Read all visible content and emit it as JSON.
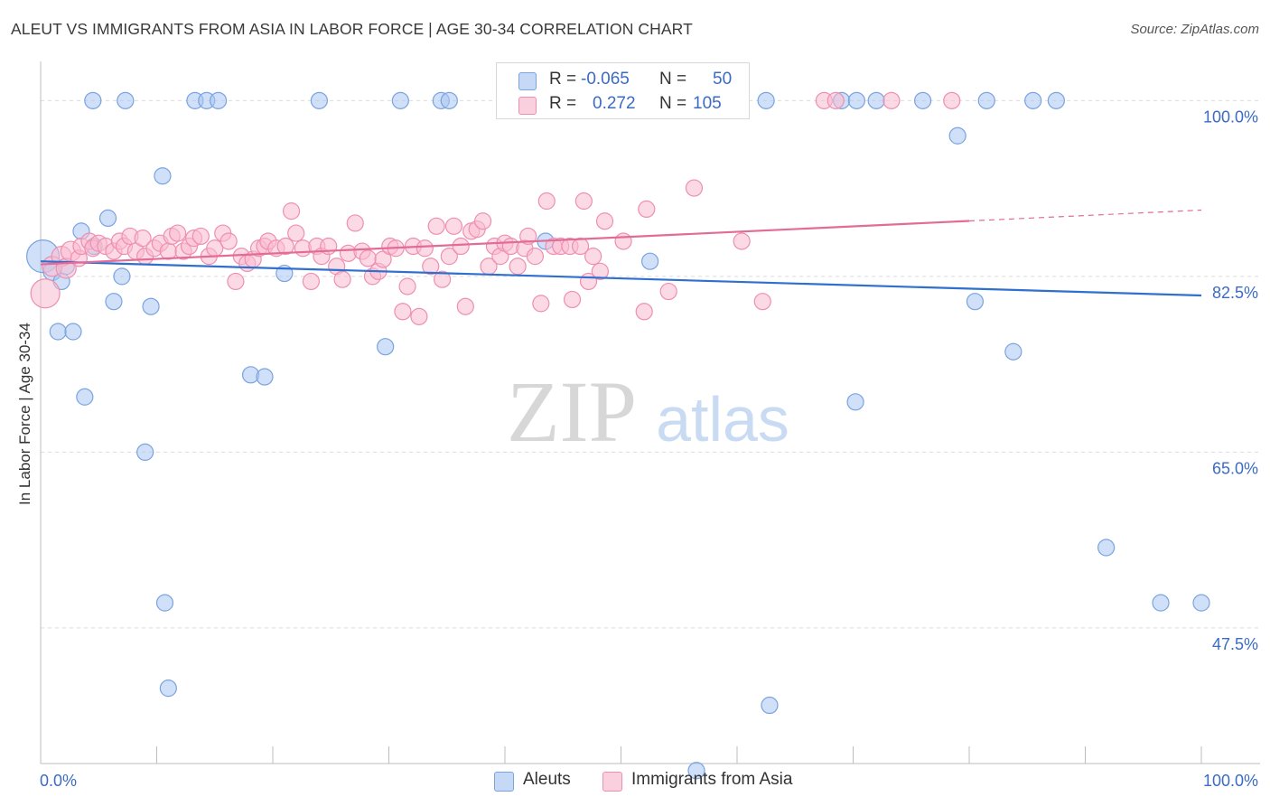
{
  "title": "ALEUT VS IMMIGRANTS FROM ASIA IN LABOR FORCE | AGE 30-34 CORRELATION CHART",
  "source": "Source: ZipAtlas.com",
  "watermark": {
    "zip": "ZIP",
    "atlas": "atlas"
  },
  "legend": {
    "r_label": "R =",
    "n_label": "N =",
    "rows": [
      {
        "r": "-0.065",
        "n": "50",
        "color": "#a9c6f2",
        "border": "#7aa3e0"
      },
      {
        "r": "0.272",
        "n": "105",
        "color": "#f9bcd0",
        "border": "#ee8fb0"
      }
    ]
  },
  "chart_data": {
    "type": "scatter",
    "ylabel": "In Labor Force | Age 30-34",
    "xlim": [
      0,
      100
    ],
    "ylim": [
      34,
      103
    ],
    "y_ticks": [
      {
        "value": 100,
        "label": "100.0%"
      },
      {
        "value": 82.5,
        "label": "82.5%"
      },
      {
        "value": 65,
        "label": "65.0%"
      },
      {
        "value": 47.5,
        "label": "47.5%"
      }
    ],
    "x_tick_labels": {
      "left": "0.0%",
      "right": "100.0%"
    },
    "x_minor_ticks": [
      0,
      10,
      20,
      30,
      40,
      50,
      60,
      70,
      80,
      90,
      100
    ],
    "grid": true,
    "series": [
      {
        "name": "Aleuts",
        "color": "#a9c6f2",
        "edge": "#7aa3e0",
        "trend_color": "#2f6fcf",
        "trend": {
          "x0": 0,
          "y0": 84.0,
          "x1": 100,
          "y1": 80.6,
          "dashed_from": null
        },
        "points": [
          [
            0.2,
            84.5,
            18
          ],
          [
            1,
            83,
            10
          ],
          [
            1.5,
            77,
            9
          ],
          [
            1.8,
            82,
            9
          ],
          [
            2.2,
            83.5,
            9
          ],
          [
            2.8,
            77,
            9
          ],
          [
            3.5,
            87,
            9
          ],
          [
            3.8,
            70.5,
            9
          ],
          [
            4.5,
            100,
            9
          ],
          [
            4.6,
            85.5,
            9
          ],
          [
            5.8,
            88.3,
            9
          ],
          [
            7,
            82.5,
            9
          ],
          [
            6.3,
            80,
            9
          ],
          [
            7.3,
            100,
            9
          ],
          [
            9,
            65,
            9
          ],
          [
            9.5,
            79.5,
            9
          ],
          [
            10.5,
            92.5,
            9
          ],
          [
            10.7,
            50,
            9
          ],
          [
            11,
            41.5,
            9
          ],
          [
            13.3,
            100,
            9
          ],
          [
            14.3,
            100,
            9
          ],
          [
            15.3,
            100,
            9
          ],
          [
            18.1,
            72.7,
            9
          ],
          [
            19.3,
            72.5,
            9
          ],
          [
            21,
            82.8,
            9
          ],
          [
            24,
            100,
            9
          ],
          [
            29.7,
            75.5,
            9
          ],
          [
            31,
            100,
            9
          ],
          [
            34.5,
            100,
            9
          ],
          [
            35.2,
            100,
            9
          ],
          [
            43.5,
            86,
            9
          ],
          [
            47,
            100,
            9
          ],
          [
            52.5,
            84,
            9
          ],
          [
            56.5,
            33.3,
            9
          ],
          [
            62.5,
            100,
            9
          ],
          [
            62.8,
            39.8,
            9
          ],
          [
            69,
            100,
            9
          ],
          [
            70.2,
            70,
            9
          ],
          [
            70.3,
            100,
            9
          ],
          [
            72,
            100,
            9
          ],
          [
            76,
            100,
            9
          ],
          [
            79,
            96.5,
            9
          ],
          [
            80.5,
            80,
            9
          ],
          [
            81.5,
            100,
            9
          ],
          [
            83.8,
            75,
            9
          ],
          [
            85.5,
            100,
            9
          ],
          [
            87.5,
            100,
            9
          ],
          [
            91.8,
            55.5,
            9
          ],
          [
            96.5,
            50,
            9
          ],
          [
            100,
            50,
            9
          ]
        ]
      },
      {
        "name": "Immigrants from Asia",
        "color": "#f9bcd0",
        "edge": "#ee8fb0",
        "trend_color": "#e36b97",
        "trend": {
          "x0": 0,
          "y0": 83.7,
          "x1": 100,
          "y1": 89.1,
          "dashed_from": 80
        },
        "points": [
          [
            0.4,
            80.8,
            16
          ],
          [
            1.0,
            83.5,
            11
          ],
          [
            1.8,
            84.5,
            11
          ],
          [
            2.2,
            83.3,
            11
          ],
          [
            2.6,
            85,
            11
          ],
          [
            3.3,
            84.3,
            9
          ],
          [
            3.5,
            85.5,
            9
          ],
          [
            4.2,
            86,
            9
          ],
          [
            4.5,
            85.3,
            9
          ],
          [
            5,
            85.8,
            9
          ],
          [
            5.6,
            85.5,
            9
          ],
          [
            6.3,
            85,
            9
          ],
          [
            6.8,
            86,
            9
          ],
          [
            7.2,
            85.5,
            9
          ],
          [
            7.7,
            86.5,
            9
          ],
          [
            8.2,
            85,
            9
          ],
          [
            8.8,
            86.3,
            9
          ],
          [
            9,
            84.5,
            9
          ],
          [
            9.8,
            85.3,
            9
          ],
          [
            10.3,
            85.8,
            9
          ],
          [
            11,
            85,
            9
          ],
          [
            11.3,
            86.5,
            9
          ],
          [
            11.8,
            86.8,
            9
          ],
          [
            12.3,
            85,
            9
          ],
          [
            12.8,
            85.5,
            9
          ],
          [
            13.2,
            86.3,
            9
          ],
          [
            13.8,
            86.5,
            9
          ],
          [
            14.5,
            84.5,
            9
          ],
          [
            15,
            85.3,
            9
          ],
          [
            15.7,
            86.8,
            9
          ],
          [
            16.2,
            86,
            9
          ],
          [
            16.8,
            82,
            9
          ],
          [
            17.3,
            84.5,
            9
          ],
          [
            17.8,
            83.8,
            9
          ],
          [
            18.3,
            84.2,
            9
          ],
          [
            18.8,
            85.3,
            9
          ],
          [
            19.3,
            85.5,
            9
          ],
          [
            19.6,
            86,
            9
          ],
          [
            20.3,
            85.3,
            9
          ],
          [
            21.1,
            85.5,
            9
          ],
          [
            21.6,
            89,
            9
          ],
          [
            22,
            86.8,
            9
          ],
          [
            22.6,
            85.3,
            9
          ],
          [
            23.3,
            82,
            9
          ],
          [
            23.8,
            85.5,
            9
          ],
          [
            24.2,
            84.5,
            9
          ],
          [
            24.8,
            85.5,
            9
          ],
          [
            25.5,
            83.5,
            9
          ],
          [
            26,
            82.2,
            9
          ],
          [
            26.5,
            84.8,
            9
          ],
          [
            27.1,
            87.8,
            9
          ],
          [
            27.7,
            85,
            9
          ],
          [
            28.2,
            84.3,
            9
          ],
          [
            28.6,
            82.5,
            9
          ],
          [
            29.1,
            83,
            9
          ],
          [
            29.5,
            84.2,
            9
          ],
          [
            30.1,
            85.5,
            9
          ],
          [
            30.6,
            85.3,
            9
          ],
          [
            31.2,
            79,
            9
          ],
          [
            31.6,
            81.5,
            9
          ],
          [
            32.1,
            85.5,
            9
          ],
          [
            32.6,
            78.5,
            9
          ],
          [
            33.1,
            85.3,
            9
          ],
          [
            33.6,
            83.5,
            9
          ],
          [
            34.1,
            87.5,
            9
          ],
          [
            34.6,
            82.2,
            9
          ],
          [
            35.2,
            84.5,
            9
          ],
          [
            35.6,
            87.5,
            9
          ],
          [
            36.2,
            85.5,
            9
          ],
          [
            36.6,
            79.5,
            9
          ],
          [
            37.1,
            87,
            9
          ],
          [
            37.6,
            87.2,
            9
          ],
          [
            38.1,
            88,
            9
          ],
          [
            38.6,
            83.5,
            9
          ],
          [
            39.1,
            85.5,
            9
          ],
          [
            39.6,
            84.5,
            9
          ],
          [
            40,
            85.8,
            9
          ],
          [
            40.5,
            85.5,
            9
          ],
          [
            41.1,
            83.5,
            9
          ],
          [
            41.7,
            85.3,
            9
          ],
          [
            42,
            86.5,
            9
          ],
          [
            42.6,
            84.5,
            9
          ],
          [
            43.1,
            79.8,
            9
          ],
          [
            43.6,
            90,
            9
          ],
          [
            44.2,
            85.5,
            9
          ],
          [
            44.8,
            85.5,
            9
          ],
          [
            45.6,
            85.5,
            9
          ],
          [
            45.8,
            80.2,
            9
          ],
          [
            46.5,
            85.5,
            9
          ],
          [
            46.8,
            90,
            9
          ],
          [
            47.2,
            82,
            9
          ],
          [
            47.6,
            84.5,
            9
          ],
          [
            48.2,
            83,
            9
          ],
          [
            48.6,
            88,
            9
          ],
          [
            50.2,
            86,
            9
          ],
          [
            52,
            79,
            9
          ],
          [
            52.2,
            89.2,
            9
          ],
          [
            54.1,
            81,
            9
          ],
          [
            56.3,
            91.3,
            9
          ],
          [
            60.4,
            86,
            9
          ],
          [
            62.2,
            80,
            9
          ],
          [
            67.5,
            100,
            9
          ],
          [
            68.5,
            100,
            9
          ],
          [
            73.3,
            100,
            9
          ],
          [
            78.5,
            100,
            9
          ]
        ]
      }
    ]
  }
}
